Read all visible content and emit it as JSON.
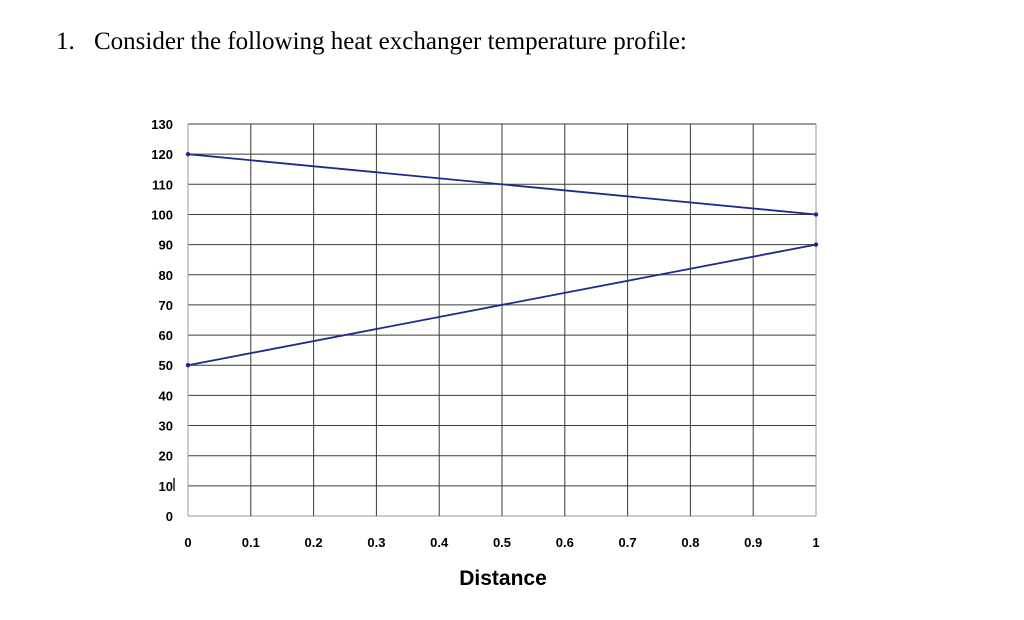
{
  "question": {
    "number": "1.",
    "text": "Consider the following heat exchanger temperature profile:"
  },
  "chart_data": {
    "type": "line",
    "title": "",
    "xlabel": "Distance",
    "ylabel": "",
    "xlim": [
      0,
      1
    ],
    "ylim": [
      0,
      130
    ],
    "x_ticks": [
      "0",
      "0.1",
      "0.2",
      "0.3",
      "0.4",
      "0.5",
      "0.6",
      "0.7",
      "0.8",
      "0.9",
      "1"
    ],
    "y_ticks": [
      "130",
      "120",
      "110",
      "100",
      "90",
      "80",
      "70",
      "60",
      "50",
      "40",
      "30",
      "20",
      "10",
      "0"
    ],
    "grid": true,
    "series": [
      {
        "x": [
          0,
          1
        ],
        "y": [
          120,
          100
        ],
        "color": "#1f2a8c"
      },
      {
        "x": [
          0,
          1
        ],
        "y": [
          50,
          90
        ],
        "color": "#1f2a8c"
      }
    ]
  }
}
